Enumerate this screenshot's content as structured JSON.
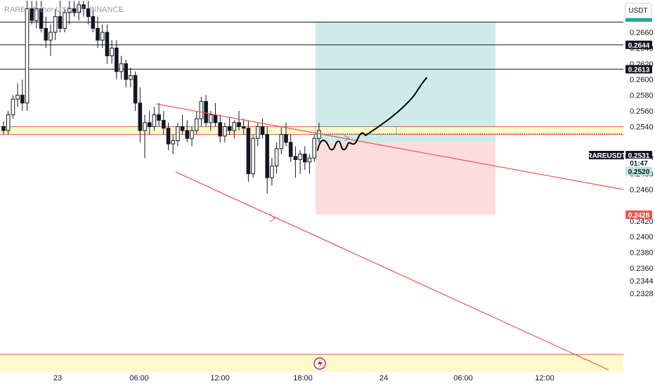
{
  "header": {
    "symbol_title": "RARE / Tether USD, 15, BINANCE",
    "currency": "USDT"
  },
  "colors": {
    "bull": "#26a69a",
    "bear": "#ef5350",
    "candle": "#131722",
    "trendline": "#ef5350",
    "profit_zone": "#26a69a",
    "loss_zone": "#ef5350",
    "support_zone": "#fff9c4",
    "tag_dark": "#131722"
  },
  "chart_data": {
    "type": "candlestick",
    "ylim": [
      0.232,
      0.2685
    ],
    "y_ticks": [
      "0.2660",
      "0.2640",
      "0.2620",
      "0.2600",
      "0.2580",
      "0.2560",
      "0.2540",
      "0.2500",
      "0.2480",
      "0.2460",
      "0.2420",
      "0.2400",
      "0.2380",
      "0.2360",
      "0.2344",
      "0.2328"
    ],
    "x_ticks": [
      "23",
      "06:00",
      "12:00",
      "18:00",
      "24",
      "06:00",
      "12:00"
    ],
    "price_tags": [
      {
        "label": "0.2644",
        "value": 0.2644,
        "style": "dark"
      },
      {
        "label": "0.2613",
        "value": 0.2613,
        "style": "dark"
      },
      {
        "label": "0.2531",
        "value": 0.2531,
        "style": "dark"
      },
      {
        "label": "01:47",
        "value": 0.2531,
        "style": "countdown"
      },
      {
        "label": "0.2520",
        "value": 0.252,
        "style": "green"
      },
      {
        "label": "0.2428",
        "value": 0.2428,
        "style": "red"
      }
    ],
    "ticker_label": "RAREUSDT",
    "horizontal_levels": [
      0.2673,
      0.2644,
      0.2613
    ],
    "current_price": 0.2531,
    "position": {
      "entry": 0.252,
      "target": 0.2673,
      "stop": 0.2428
    },
    "support_zone": [
      0.253,
      0.254
    ],
    "lower_zone": [
      0.2322,
      0.2334
    ],
    "candles": [
      [
        0.254,
        0.2547,
        0.253,
        0.2535
      ],
      [
        0.2535,
        0.256,
        0.253,
        0.2555
      ],
      [
        0.2555,
        0.258,
        0.255,
        0.2575
      ],
      [
        0.2575,
        0.2595,
        0.2565,
        0.258
      ],
      [
        0.258,
        0.26,
        0.256,
        0.257
      ],
      [
        0.257,
        0.27,
        0.256,
        0.269
      ],
      [
        0.269,
        0.27,
        0.267,
        0.2675
      ],
      [
        0.2675,
        0.27,
        0.2665,
        0.269
      ],
      [
        0.269,
        0.27,
        0.266,
        0.2665
      ],
      [
        0.2665,
        0.268,
        0.264,
        0.265
      ],
      [
        0.265,
        0.267,
        0.263,
        0.266
      ],
      [
        0.266,
        0.269,
        0.265,
        0.268
      ],
      [
        0.268,
        0.27,
        0.266,
        0.2665
      ],
      [
        0.2665,
        0.269,
        0.266,
        0.2685
      ],
      [
        0.2685,
        0.27,
        0.267,
        0.269
      ],
      [
        0.269,
        0.27,
        0.268,
        0.2685
      ],
      [
        0.2685,
        0.27,
        0.2675,
        0.2695
      ],
      [
        0.2695,
        0.27,
        0.268,
        0.269
      ],
      [
        0.269,
        0.27,
        0.267,
        0.268
      ],
      [
        0.268,
        0.269,
        0.266,
        0.2665
      ],
      [
        0.2665,
        0.268,
        0.264,
        0.265
      ],
      [
        0.265,
        0.267,
        0.264,
        0.266
      ],
      [
        0.266,
        0.267,
        0.262,
        0.263
      ],
      [
        0.263,
        0.265,
        0.262,
        0.264
      ],
      [
        0.264,
        0.265,
        0.26,
        0.261
      ],
      [
        0.261,
        0.263,
        0.26,
        0.262
      ],
      [
        0.262,
        0.2625,
        0.259,
        0.26
      ],
      [
        0.26,
        0.2615,
        0.259,
        0.2605
      ],
      [
        0.2605,
        0.261,
        0.256,
        0.257
      ],
      [
        0.257,
        0.259,
        0.252,
        0.2535
      ],
      [
        0.2535,
        0.2555,
        0.25,
        0.2545
      ],
      [
        0.2545,
        0.256,
        0.253,
        0.254
      ],
      [
        0.254,
        0.2565,
        0.2535,
        0.2555
      ],
      [
        0.2555,
        0.257,
        0.254,
        0.2548
      ],
      [
        0.2548,
        0.256,
        0.253,
        0.2538
      ],
      [
        0.2538,
        0.2545,
        0.251,
        0.2518
      ],
      [
        0.2518,
        0.253,
        0.2505,
        0.2522
      ],
      [
        0.2522,
        0.2545,
        0.2515,
        0.254
      ],
      [
        0.254,
        0.2555,
        0.253,
        0.2535
      ],
      [
        0.2535,
        0.2548,
        0.252,
        0.2525
      ],
      [
        0.2525,
        0.254,
        0.2515,
        0.2535
      ],
      [
        0.2535,
        0.256,
        0.253,
        0.255
      ],
      [
        0.255,
        0.2578,
        0.254,
        0.2572
      ],
      [
        0.2572,
        0.258,
        0.254,
        0.2545
      ],
      [
        0.2545,
        0.256,
        0.2535,
        0.2555
      ],
      [
        0.2555,
        0.257,
        0.254,
        0.2545
      ],
      [
        0.2545,
        0.2555,
        0.252,
        0.2528
      ],
      [
        0.2528,
        0.2545,
        0.252,
        0.254
      ],
      [
        0.254,
        0.2552,
        0.253,
        0.2535
      ],
      [
        0.2535,
        0.2548,
        0.2525,
        0.2545
      ],
      [
        0.2545,
        0.256,
        0.2535,
        0.254
      ],
      [
        0.254,
        0.255,
        0.253,
        0.2538
      ],
      [
        0.2538,
        0.2548,
        0.247,
        0.248
      ],
      [
        0.248,
        0.253,
        0.2475,
        0.2525
      ],
      [
        0.2525,
        0.2545,
        0.2515,
        0.254
      ],
      [
        0.254,
        0.255,
        0.2525,
        0.253
      ],
      [
        0.253,
        0.254,
        0.2455,
        0.2475
      ],
      [
        0.2475,
        0.25,
        0.2465,
        0.249
      ],
      [
        0.249,
        0.252,
        0.248,
        0.2512
      ],
      [
        0.2512,
        0.254,
        0.2505,
        0.253
      ],
      [
        0.253,
        0.2545,
        0.2515,
        0.252
      ],
      [
        0.252,
        0.253,
        0.2495,
        0.2502
      ],
      [
        0.2502,
        0.2515,
        0.2475,
        0.2498
      ],
      [
        0.2498,
        0.251,
        0.248,
        0.2505
      ],
      [
        0.2505,
        0.2515,
        0.2485,
        0.2495
      ],
      [
        0.2495,
        0.2505,
        0.248,
        0.25
      ],
      [
        0.25,
        0.253,
        0.2495,
        0.2525
      ],
      [
        0.2525,
        0.2545,
        0.252,
        0.2535
      ]
    ]
  }
}
